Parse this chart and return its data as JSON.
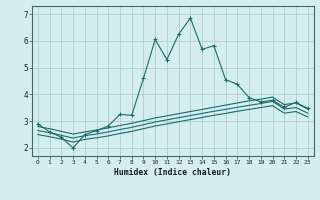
{
  "xlabel": "Humidex (Indice chaleur)",
  "bg_color": "#d4edee",
  "grid_color": "#b0cccc",
  "line_color": "#1a6b6b",
  "xlim": [
    -0.5,
    23.5
  ],
  "ylim": [
    1.7,
    7.3
  ],
  "xticks": [
    0,
    1,
    2,
    3,
    4,
    5,
    6,
    7,
    8,
    9,
    10,
    11,
    12,
    13,
    14,
    15,
    16,
    17,
    18,
    19,
    20,
    21,
    22,
    23
  ],
  "yticks": [
    2,
    3,
    4,
    5,
    6,
    7
  ],
  "line1_x": [
    0,
    1,
    2,
    3,
    4,
    5,
    6,
    7,
    8,
    9,
    10,
    11,
    12,
    13,
    14,
    15,
    16,
    17,
    18,
    19,
    20,
    21,
    22,
    23
  ],
  "line1_y": [
    2.9,
    2.6,
    2.4,
    2.0,
    2.5,
    2.65,
    2.82,
    3.25,
    3.22,
    4.6,
    6.05,
    5.3,
    6.25,
    6.85,
    5.68,
    5.82,
    4.55,
    4.38,
    3.88,
    3.72,
    3.78,
    3.52,
    3.7,
    3.48
  ],
  "line2_x": [
    0,
    1,
    2,
    3,
    4,
    5,
    6,
    7,
    8,
    9,
    10,
    11,
    12,
    13,
    14,
    15,
    16,
    17,
    18,
    19,
    20,
    21,
    22,
    23
  ],
  "line2_y": [
    2.8,
    2.72,
    2.62,
    2.52,
    2.6,
    2.67,
    2.75,
    2.84,
    2.92,
    3.02,
    3.12,
    3.2,
    3.28,
    3.36,
    3.44,
    3.52,
    3.6,
    3.68,
    3.76,
    3.82,
    3.9,
    3.62,
    3.68,
    3.45
  ],
  "line3_x": [
    0,
    1,
    2,
    3,
    4,
    5,
    6,
    7,
    8,
    9,
    10,
    11,
    12,
    13,
    14,
    15,
    16,
    17,
    18,
    19,
    20,
    21,
    22,
    23
  ],
  "line3_y": [
    2.65,
    2.57,
    2.47,
    2.37,
    2.46,
    2.52,
    2.6,
    2.69,
    2.77,
    2.87,
    2.97,
    3.05,
    3.13,
    3.21,
    3.29,
    3.37,
    3.44,
    3.52,
    3.59,
    3.66,
    3.74,
    3.45,
    3.51,
    3.3
  ],
  "line4_x": [
    0,
    1,
    2,
    3,
    4,
    5,
    6,
    7,
    8,
    9,
    10,
    11,
    12,
    13,
    14,
    15,
    16,
    17,
    18,
    19,
    20,
    21,
    22,
    23
  ],
  "line4_y": [
    2.5,
    2.42,
    2.33,
    2.22,
    2.32,
    2.38,
    2.45,
    2.54,
    2.62,
    2.72,
    2.82,
    2.9,
    2.98,
    3.06,
    3.14,
    3.22,
    3.29,
    3.37,
    3.44,
    3.51,
    3.58,
    3.3,
    3.36,
    3.16
  ]
}
